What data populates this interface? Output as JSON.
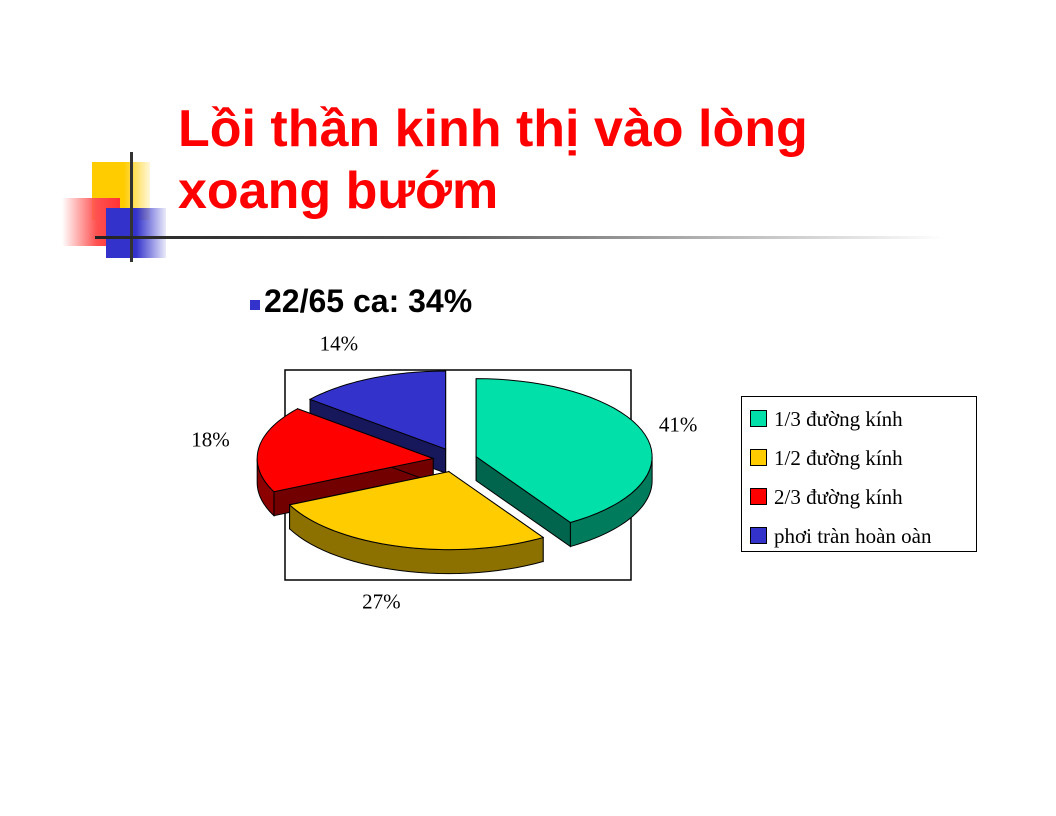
{
  "slide": {
    "title_line1": "Lồi thần kinh thị vào lòng",
    "title_line2": "xoang bướm",
    "bullet": "22/65 ca: 34%",
    "title_color": "#ff0000",
    "bullet_color": "#3333cc"
  },
  "chart_data": {
    "type": "pie",
    "style": "3d-exploded",
    "categories": [
      "1/3 đường kính",
      "1/2 đường kính",
      "2/3 đường kính",
      "phơi tràn hoàn oàn"
    ],
    "values": [
      41,
      27,
      18,
      14
    ],
    "data_labels": [
      "41%",
      "27%",
      "18%",
      "14%"
    ],
    "colors": [
      "#00e0a8",
      "#ffcc00",
      "#ff0000",
      "#3333cc"
    ],
    "legend_position": "right"
  }
}
